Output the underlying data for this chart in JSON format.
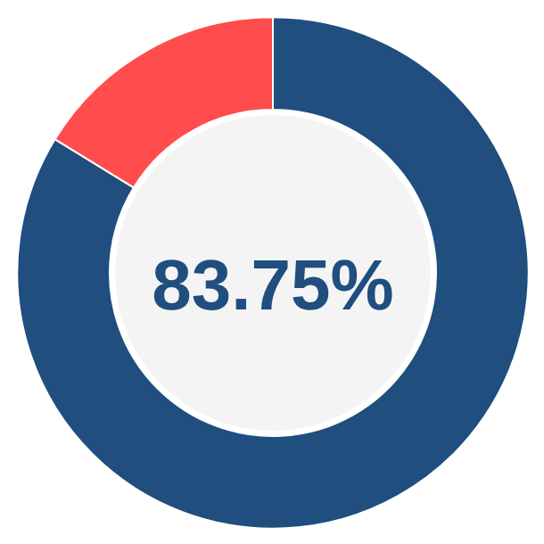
{
  "chart_data": {
    "type": "donut",
    "categories": [
      null,
      null
    ],
    "values": [
      83.75,
      16.25
    ],
    "colors": [
      "#1f4e7f",
      "#ff4d4d"
    ],
    "annotations": [
      "83.75%"
    ]
  }
}
